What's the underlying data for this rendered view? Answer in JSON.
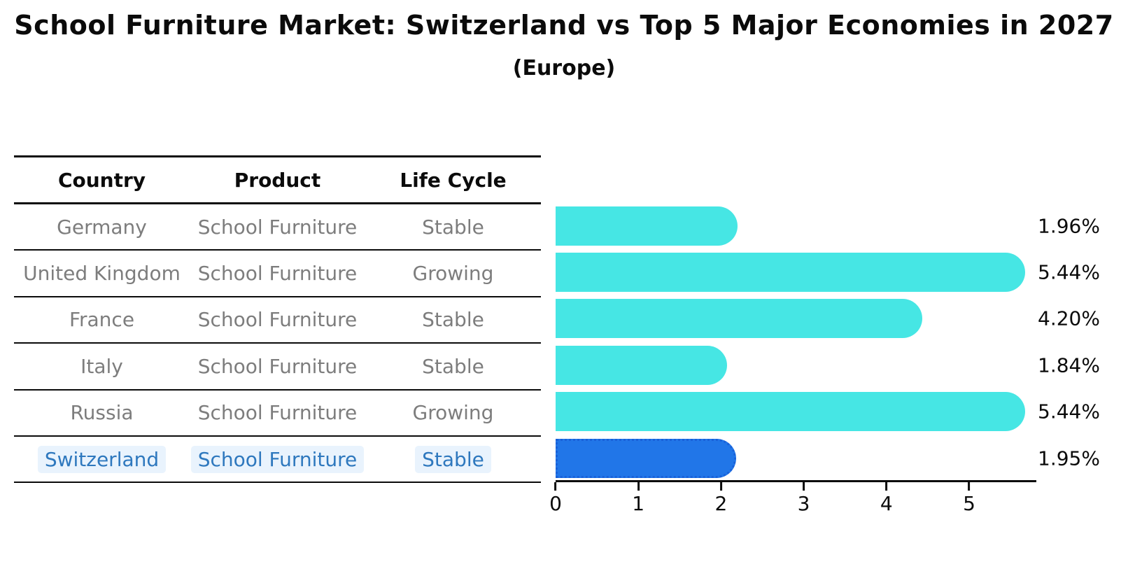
{
  "title": "School Furniture Market: Switzerland vs Top 5 Major Economies in 2027",
  "subtitle": "(Europe)",
  "table": {
    "columns": [
      "Country",
      "Product",
      "Life Cycle"
    ],
    "rows": [
      {
        "country": "Germany",
        "product": "School Furniture",
        "life_cycle": "Stable",
        "highlight": false
      },
      {
        "country": "United Kingdom",
        "product": "School Furniture",
        "life_cycle": "Growing",
        "highlight": false
      },
      {
        "country": "France",
        "product": "School Furniture",
        "life_cycle": "Stable",
        "highlight": false
      },
      {
        "country": "Italy",
        "product": "School Furniture",
        "life_cycle": "Stable",
        "highlight": false
      },
      {
        "country": "Russia",
        "product": "School Furniture",
        "life_cycle": "Growing",
        "highlight": false
      },
      {
        "country": "Switzerland",
        "product": "School Furniture",
        "life_cycle": "Stable",
        "highlight": true
      }
    ]
  },
  "chart_data": {
    "type": "bar",
    "orientation": "horizontal",
    "title": "School Furniture Market: Switzerland vs Top 5 Major Economies in 2027",
    "subtitle": "(Europe)",
    "categories": [
      "Germany",
      "United Kingdom",
      "France",
      "Italy",
      "Russia",
      "Switzerland"
    ],
    "values": [
      1.96,
      5.44,
      4.2,
      1.84,
      5.44,
      1.95
    ],
    "value_labels": [
      "1.96%",
      "5.44%",
      "4.20%",
      "1.84%",
      "5.44%",
      "1.95%"
    ],
    "x_ticks": [
      0,
      1,
      2,
      3,
      4,
      5
    ],
    "xlim": [
      0,
      5.8
    ],
    "grid": false,
    "legend": false,
    "bar_color": "#46e6e4",
    "highlight_bar_color": "#2176e8",
    "highlight_border_color": "#1961d9",
    "highlight_index": 5,
    "highlight_text_color": "#2e78be"
  }
}
